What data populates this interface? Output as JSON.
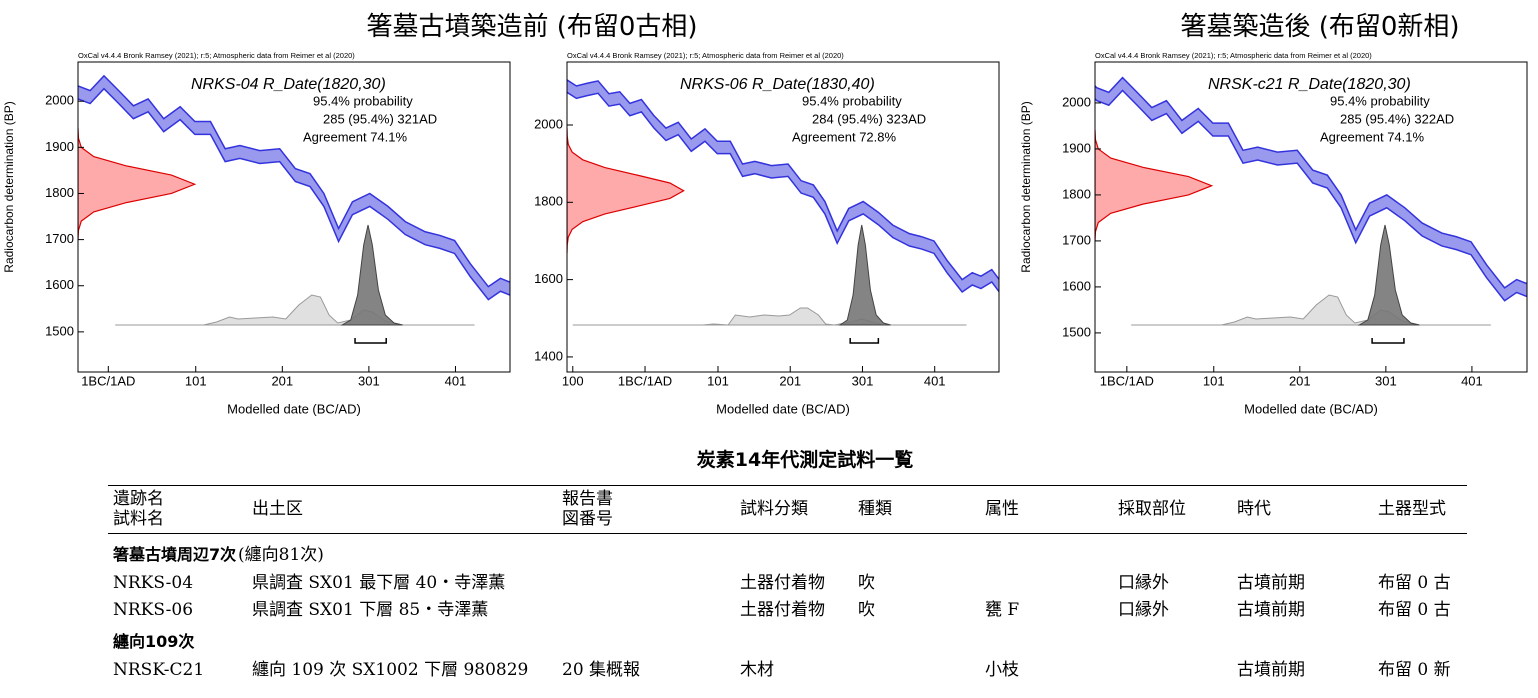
{
  "headings": [
    {
      "text": "箸墓古墳築造前 (布留0古相)"
    },
    {
      "text": "箸墓築造後 (布留0新相)"
    }
  ],
  "chart_data": [
    {
      "type": "calibration",
      "credit": "OxCal v4.4.4 Bronk Ramsey (2021); r:5; Atmospheric data from Reimer et al (2020)",
      "title": "NRKS-04 R_Date(1820,30)",
      "notes": [
        "95.4% probability",
        "285 (95.4%) 321AD",
        "Agreement 74.1%"
      ],
      "xlabel": "Modelled date (BC/AD)",
      "ylabel": "Radiocarbon determination (BP)",
      "xlim": [
        -35,
        464
      ],
      "ylim": [
        1413,
        2085
      ],
      "xticks": [
        {
          "value": 0,
          "label": "1BC/1AD"
        },
        101,
        201,
        301,
        401
      ],
      "yticks": [
        1500,
        1600,
        1700,
        1800,
        1900,
        2000
      ],
      "curve": {
        "color": "#3333dd",
        "fill": "#9999ee",
        "x": [
          -50,
          -35,
          -21,
          -5,
          12,
          29,
          46,
          64,
          83,
          100,
          118,
          135,
          152,
          175,
          198,
          216,
          233,
          249,
          266,
          282,
          302,
          323,
          343,
          366,
          383,
          400,
          418,
          439,
          453,
          465,
          480
        ],
        "values": [
          2050,
          2019,
          2009,
          2041,
          2009,
          1976,
          1991,
          1948,
          1974,
          1942,
          1942,
          1883,
          1890,
          1879,
          1883,
          1840,
          1829,
          1786,
          1710,
          1768,
          1786,
          1758,
          1725,
          1703,
          1695,
          1684,
          1634,
          1584,
          1602,
          1593,
          1610
        ],
        "errors": [
          14,
          14,
          14,
          14,
          14,
          14,
          14,
          14,
          14,
          14,
          14,
          14,
          14,
          14,
          14,
          14,
          14,
          14,
          14,
          14,
          14,
          14,
          14,
          14,
          14,
          14,
          14,
          14,
          14,
          14,
          14
        ]
      },
      "radiocarbon": {
        "color": "#dd0000",
        "fill": "#ffaaaa",
        "y": [
          1700,
          1720,
          1740,
          1760,
          1780,
          1800,
          1820,
          1840,
          1860,
          1880,
          1900,
          1920,
          1940
        ],
        "density": [
          0.0003,
          0.004,
          0.028,
          0.135,
          0.411,
          0.801,
          1,
          0.801,
          0.411,
          0.135,
          0.028,
          0.004,
          0.0003
        ]
      },
      "likelihood": {
        "color": "#999999",
        "fill": "#dddddd",
        "x": [
          8,
          110,
          125,
          140,
          150,
          170,
          190,
          205,
          220,
          235,
          245,
          255,
          265,
          280,
          295,
          305,
          320,
          340,
          423
        ],
        "density": [
          0,
          0,
          0.03,
          0.08,
          0.06,
          0.07,
          0.08,
          0.06,
          0.2,
          0.3,
          0.28,
          0.1,
          0.02,
          0.05,
          0.15,
          0.13,
          0.04,
          0,
          0
        ]
      },
      "posterior": {
        "color": "#444444",
        "fill": "#777777",
        "x": [
          270,
          280,
          288,
          295,
          300,
          305,
          312,
          320,
          330,
          340
        ],
        "density": [
          0,
          0.05,
          0.3,
          0.8,
          1,
          0.8,
          0.35,
          0.1,
          0.02,
          0
        ]
      },
      "range": [
        285,
        321
      ]
    },
    {
      "type": "calibration",
      "credit": "OxCal v4.4.4 Bronk Ramsey (2021); r:5; Atmospheric data from Reimer et al (2020)",
      "title": "NRKS-06 R_Date(1830,40)",
      "notes": [
        "95.4% probability",
        "284 (95.4%) 323AD",
        "Agreement 72.8%"
      ],
      "xlabel": "Modelled date (BC/AD)",
      "ylabel": null,
      "xlim": [
        -108,
        490
      ],
      "ylim": [
        1361,
        2163
      ],
      "xticks": [
        {
          "value": -100,
          "label": "100"
        },
        {
          "value": 0,
          "label": "1BC/1AD"
        },
        101,
        201,
        301,
        401
      ],
      "yticks": [
        1400,
        1600,
        1800,
        2000
      ],
      "curve": {
        "color": "#3333dd",
        "fill": "#9999ee",
        "x": [
          -110,
          -95,
          -80,
          -65,
          -50,
          -35,
          -21,
          -5,
          12,
          29,
          46,
          64,
          83,
          100,
          118,
          135,
          152,
          175,
          198,
          216,
          233,
          249,
          266,
          282,
          302,
          323,
          343,
          366,
          383,
          400,
          418,
          439,
          453,
          465,
          480,
          492
        ],
        "values": [
          2103,
          2085,
          2092,
          2098,
          2065,
          2070,
          2040,
          2050,
          2009,
          1976,
          1991,
          1948,
          1974,
          1942,
          1942,
          1883,
          1890,
          1879,
          1883,
          1840,
          1829,
          1786,
          1710,
          1768,
          1786,
          1758,
          1725,
          1703,
          1695,
          1684,
          1634,
          1584,
          1602,
          1593,
          1610,
          1580
        ],
        "errors": [
          16,
          16,
          16,
          16,
          16,
          16,
          16,
          16,
          16,
          16,
          16,
          16,
          16,
          16,
          16,
          16,
          16,
          16,
          16,
          16,
          16,
          16,
          16,
          16,
          16,
          16,
          16,
          16,
          16,
          16,
          16,
          16,
          16,
          16,
          16,
          16
        ]
      },
      "radiocarbon": {
        "color": "#dd0000",
        "fill": "#ffaaaa",
        "y": [
          1670,
          1690,
          1710,
          1730,
          1750,
          1770,
          1790,
          1810,
          1830,
          1850,
          1870,
          1890,
          1910,
          1930,
          1950,
          1970,
          1990
        ],
        "density": [
          0.0003,
          0.0022,
          0.011,
          0.044,
          0.135,
          0.325,
          0.607,
          0.882,
          1,
          0.882,
          0.607,
          0.325,
          0.135,
          0.044,
          0.011,
          0.0022,
          0.0003
        ]
      },
      "likelihood": {
        "color": "#999999",
        "fill": "#dddddd",
        "x": [
          -100,
          80,
          95,
          115,
          125,
          145,
          165,
          185,
          200,
          215,
          225,
          240,
          250,
          262,
          285,
          300,
          315,
          330,
          445
        ],
        "density": [
          0,
          0,
          0.01,
          0.0,
          0.1,
          0.08,
          0.1,
          0.09,
          0.1,
          0.17,
          0.17,
          0.1,
          0.01,
          0,
          0.03,
          0.06,
          0.03,
          0,
          0
        ]
      },
      "posterior": {
        "color": "#444444",
        "fill": "#777777",
        "x": [
          270,
          280,
          288,
          295,
          300,
          305,
          312,
          320,
          330,
          340
        ],
        "density": [
          0,
          0.05,
          0.3,
          0.8,
          1,
          0.8,
          0.35,
          0.1,
          0.02,
          0
        ]
      },
      "range": [
        284,
        323
      ]
    },
    {
      "type": "calibration",
      "credit": "OxCal v4.4.4 Bronk Ramsey (2021); r:5; Atmospheric data from Reimer et al (2020)",
      "title": "NRSK-c21 R_Date(1820,30)",
      "notes": [
        "95.4% probability",
        "285 (95.4%) 322AD",
        "Agreement 74.1%"
      ],
      "xlabel": "Modelled date (BC/AD)",
      "ylabel": "Radiocarbon determination (BP)",
      "xlim": [
        -37,
        465
      ],
      "ylim": [
        1415,
        2089
      ],
      "xticks": [
        {
          "value": 0,
          "label": "1BC/1AD"
        },
        101,
        201,
        301,
        401
      ],
      "yticks": [
        1500,
        1600,
        1700,
        1800,
        1900,
        2000
      ],
      "curve": {
        "color": "#3333dd",
        "fill": "#9999ee",
        "x": [
          -50,
          -35,
          -21,
          -5,
          12,
          29,
          46,
          64,
          83,
          100,
          118,
          135,
          152,
          175,
          198,
          216,
          233,
          249,
          266,
          282,
          302,
          323,
          343,
          366,
          383,
          400,
          418,
          439,
          453,
          465,
          480
        ],
        "values": [
          2050,
          2019,
          2009,
          2041,
          2009,
          1976,
          1991,
          1948,
          1974,
          1942,
          1942,
          1883,
          1890,
          1879,
          1883,
          1840,
          1829,
          1786,
          1710,
          1768,
          1786,
          1758,
          1725,
          1703,
          1695,
          1684,
          1634,
          1584,
          1602,
          1593,
          1610
        ],
        "errors": [
          14,
          14,
          14,
          14,
          14,
          14,
          14,
          14,
          14,
          14,
          14,
          14,
          14,
          14,
          14,
          14,
          14,
          14,
          14,
          14,
          14,
          14,
          14,
          14,
          14,
          14,
          14,
          14,
          14,
          14,
          14
        ]
      },
      "radiocarbon": {
        "color": "#dd0000",
        "fill": "#ffaaaa",
        "y": [
          1700,
          1720,
          1740,
          1760,
          1780,
          1800,
          1820,
          1840,
          1860,
          1880,
          1900,
          1920,
          1940
        ],
        "density": [
          0.0003,
          0.004,
          0.028,
          0.135,
          0.411,
          0.801,
          1,
          0.801,
          0.411,
          0.135,
          0.028,
          0.004,
          0.0003
        ]
      },
      "likelihood": {
        "color": "#999999",
        "fill": "#dddddd",
        "x": [
          5,
          110,
          125,
          140,
          150,
          170,
          190,
          205,
          220,
          235,
          245,
          255,
          265,
          280,
          295,
          305,
          320,
          340,
          423
        ],
        "density": [
          0,
          0,
          0.03,
          0.08,
          0.06,
          0.07,
          0.08,
          0.06,
          0.2,
          0.3,
          0.28,
          0.1,
          0.02,
          0.05,
          0.15,
          0.13,
          0.04,
          0,
          0
        ]
      },
      "posterior": {
        "color": "#444444",
        "fill": "#777777",
        "x": [
          270,
          280,
          288,
          295,
          300,
          305,
          312,
          320,
          330,
          340
        ],
        "density": [
          0,
          0.05,
          0.3,
          0.8,
          1,
          0.8,
          0.35,
          0.1,
          0.02,
          0
        ]
      },
      "range": [
        285,
        322
      ]
    }
  ],
  "table": {
    "title": "炭素14年代測定試料一覧",
    "headers": [
      [
        "遺跡名",
        "試料名"
      ],
      [
        "出土区"
      ],
      [
        "報告書",
        "図番号"
      ],
      [
        "試料分類"
      ],
      [
        "種類"
      ],
      [
        "属性"
      ],
      [
        "採取部位"
      ],
      [
        "時代"
      ],
      [
        "土器型式"
      ]
    ],
    "groups": [
      {
        "label": "箸墓古墳周辺7次",
        "note": "(纏向81次)",
        "rows": [
          [
            "NRKS-04",
            "県調査 SX01 最下層 40・寺澤薫",
            null,
            "土器付着物",
            "吹",
            null,
            "口縁外",
            "古墳前期",
            "布留 0 古"
          ],
          [
            "NRKS-06",
            "県調査 SX01 下層 85・寺澤薫",
            null,
            "土器付着物",
            "吹",
            "甕 F",
            "口縁外",
            "古墳前期",
            "布留 0 古"
          ]
        ]
      },
      {
        "label": "纏向109次",
        "note": null,
        "rows": [
          [
            "NRSK-C21",
            "纏向 109 次 SX1002 下層 980829",
            "20 集概報",
            "木材",
            null,
            "小枝",
            null,
            "古墳前期",
            "布留 0 新"
          ]
        ]
      }
    ]
  }
}
